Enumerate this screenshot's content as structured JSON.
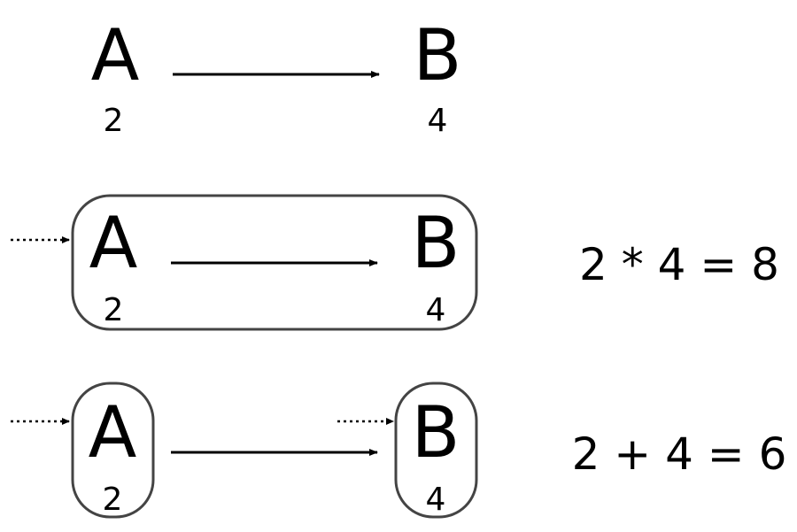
{
  "rows": [
    {
      "from": {
        "label": "A",
        "value": "2"
      },
      "to": {
        "label": "B",
        "value": "4"
      },
      "equation": ""
    },
    {
      "from": {
        "label": "A",
        "value": "2"
      },
      "to": {
        "label": "B",
        "value": "4"
      },
      "equation": "2 * 4 = 8"
    },
    {
      "from": {
        "label": "A",
        "value": "2"
      },
      "to": {
        "label": "B",
        "value": "4"
      },
      "equation": "2 + 4 = 6"
    }
  ],
  "colors": {
    "ink": "#000000",
    "box_border": "#444444"
  }
}
